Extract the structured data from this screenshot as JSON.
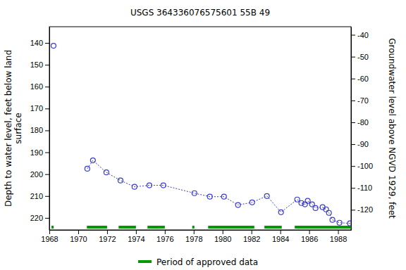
{
  "chart_data": {
    "type": "scatter",
    "title": "USGS 364336076575601 55B 49",
    "ylabel": [
      "Depth to water level, feet below land",
      "surface"
    ],
    "y2label": "Groundwater level above NGVD 1929, feet",
    "xlim": [
      1968,
      1988.9
    ],
    "xticks": [
      1968,
      1970,
      1972,
      1974,
      1976,
      1978,
      1980,
      1982,
      1984,
      1986,
      1988
    ],
    "ylim": [
      132.6,
      225.5
    ],
    "yticks": [
      140,
      150,
      160,
      170,
      180,
      190,
      200,
      210,
      220
    ],
    "y2lim": [
      -36.3,
      -129.2
    ],
    "y2ticks": [
      -40,
      -50,
      -60,
      -70,
      -80,
      -90,
      -100,
      -110,
      -120
    ],
    "series": [
      {
        "color": "#3a3acc",
        "marker": "circle",
        "line_style": "dotted",
        "x": [
          1968.29,
          null,
          1970.63,
          1971.02,
          1971.95,
          1972.93,
          1973.9,
          1974.93,
          1975.9,
          1978.05,
          1979.12,
          1980.1,
          1981.07,
          1982.05,
          1983.07,
          1984.05,
          1985.17,
          1985.46,
          1985.71,
          1985.9,
          1986.2,
          1986.44,
          1986.93,
          1987.17,
          1987.37,
          1987.61,
          1988.1,
          1988.83
        ],
        "values": [
          141.3,
          null,
          197.5,
          193.7,
          199.2,
          202.9,
          205.8,
          205.1,
          205.1,
          208.7,
          210.3,
          210.3,
          214.1,
          212.9,
          210.0,
          217.4,
          211.6,
          213.2,
          213.8,
          212.2,
          213.8,
          215.5,
          215.1,
          216.1,
          217.7,
          220.9,
          222.2,
          222.5
        ]
      }
    ],
    "approved_periods": {
      "name": "Period of approved data",
      "color": "#009900",
      "ranges": [
        [
          1968.15,
          1968.3
        ],
        [
          1970.6,
          1972.0
        ],
        [
          1972.8,
          1974.0
        ],
        [
          1974.8,
          1976.0
        ],
        [
          1977.9,
          1978.05
        ],
        [
          1979.0,
          1982.2
        ],
        [
          1982.9,
          1984.1
        ],
        [
          1985.0,
          1988.9
        ]
      ]
    }
  }
}
